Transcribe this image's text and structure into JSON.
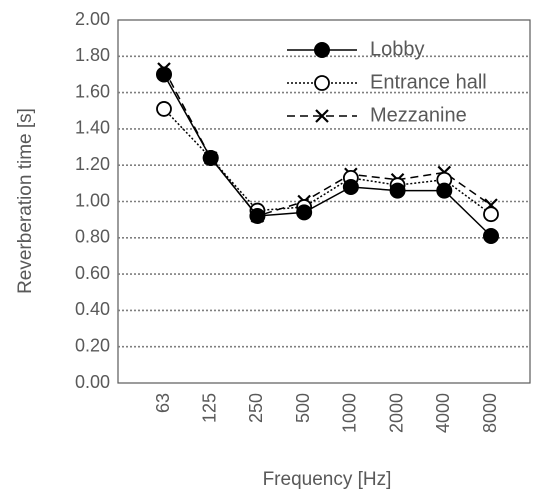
{
  "chart_data": {
    "type": "line",
    "title": "",
    "xlabel": "Frequency [Hz]",
    "ylabel": "Reverberation time [s]",
    "categories": [
      "63",
      "125",
      "250",
      "500",
      "1000",
      "2000",
      "4000",
      "8000"
    ],
    "ylim": [
      0,
      2.0
    ],
    "yticks": [
      "0.00",
      "0.20",
      "0.40",
      "0.60",
      "0.80",
      "1.00",
      "1.20",
      "1.40",
      "1.60",
      "1.80",
      "2.00"
    ],
    "grid": true,
    "legend_position": "top-right",
    "series": [
      {
        "name": "Lobby",
        "values": [
          1.7,
          1.24,
          0.92,
          0.94,
          1.08,
          1.06,
          1.06,
          0.81
        ],
        "line_style": "solid",
        "marker": "filled-circle",
        "color": "#000000"
      },
      {
        "name": "Entrance hall",
        "values": [
          1.51,
          1.24,
          0.95,
          0.97,
          1.13,
          1.09,
          1.12,
          0.93
        ],
        "line_style": "dotted",
        "marker": "open-circle",
        "color": "#000000"
      },
      {
        "name": "Mezzanine",
        "values": [
          1.73,
          1.24,
          0.92,
          1.0,
          1.15,
          1.12,
          1.16,
          0.98
        ],
        "line_style": "dashed",
        "marker": "x",
        "color": "#000000"
      }
    ]
  }
}
